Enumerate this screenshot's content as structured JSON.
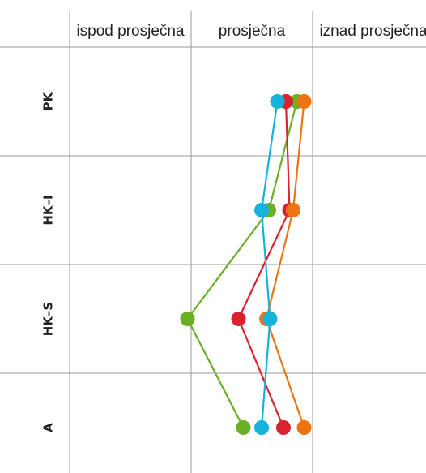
{
  "chart_data": {
    "type": "line",
    "orientation": "horizontal-values",
    "columns": [
      "ispod prosječna",
      "prosječna",
      "iznad prosječna"
    ],
    "rows": [
      "PK",
      "HK–I",
      "HK–S",
      "A"
    ],
    "value_scale": {
      "min": 0,
      "max": 3,
      "note": "0–1 ispod prosječna, 1–2 prosječna, 2–3 iznad prosječna"
    },
    "series": [
      {
        "color": "#6ab023",
        "values": [
          1.87,
          1.64,
          0.97,
          1.43
        ]
      },
      {
        "color": "#d9232f",
        "values": [
          1.78,
          1.81,
          1.39,
          1.76
        ]
      },
      {
        "color": "#ee7413",
        "values": [
          1.93,
          1.84,
          1.62,
          1.93
        ]
      },
      {
        "color": "#16b2db",
        "values": [
          1.71,
          1.58,
          1.65,
          1.58
        ]
      }
    ],
    "grid": true,
    "legend": "none"
  }
}
